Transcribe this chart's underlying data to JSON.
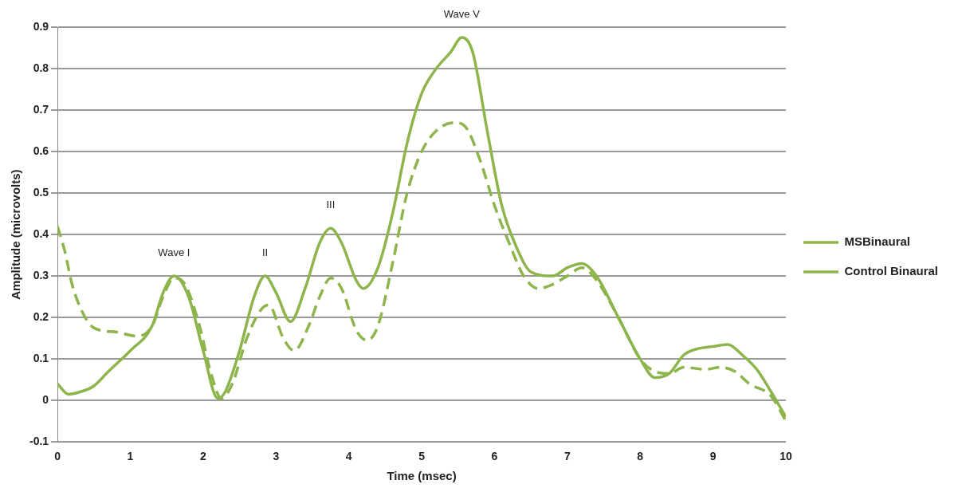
{
  "chart_data": {
    "type": "line",
    "xlabel": "Time (msec)",
    "ylabel": "Amplitude (microvolts)",
    "xlim": [
      0,
      10
    ],
    "xticks": [
      0,
      1,
      2,
      3,
      4,
      5,
      6,
      7,
      8,
      9,
      10
    ],
    "ylim": [
      -0.1,
      0.9
    ],
    "yticks": [
      -0.1,
      0,
      0.1,
      0.2,
      0.3,
      0.4,
      0.5,
      0.6,
      0.7,
      0.8,
      0.9
    ],
    "grid": "y",
    "legend": "right",
    "marker": "none",
    "series": [
      {
        "name": "MSBinaural",
        "color": "#8db54b",
        "line_style": "dashed",
        "x": [
          0,
          0.1,
          0.2,
          0.35,
          0.5,
          0.8,
          1.1,
          1.3,
          1.45,
          1.6,
          1.75,
          1.95,
          2.1,
          2.25,
          2.4,
          2.6,
          2.8,
          2.9,
          3.1,
          3.25,
          3.45,
          3.6,
          3.75,
          3.9,
          4.1,
          4.25,
          4.4,
          4.6,
          4.8,
          5.0,
          5.2,
          5.45,
          5.6,
          5.8,
          6.0,
          6.2,
          6.4,
          6.6,
          6.8,
          7.0,
          7.2,
          7.4,
          7.7,
          8.0,
          8.2,
          8.4,
          8.6,
          8.9,
          9.1,
          9.3,
          9.5,
          9.8,
          10
        ],
        "values": [
          0.42,
          0.36,
          0.28,
          0.21,
          0.175,
          0.165,
          0.155,
          0.18,
          0.25,
          0.295,
          0.28,
          0.18,
          0.07,
          0.005,
          0.04,
          0.15,
          0.22,
          0.23,
          0.15,
          0.12,
          0.18,
          0.25,
          0.295,
          0.27,
          0.17,
          0.145,
          0.18,
          0.33,
          0.5,
          0.6,
          0.65,
          0.67,
          0.66,
          0.58,
          0.47,
          0.38,
          0.3,
          0.27,
          0.28,
          0.3,
          0.32,
          0.29,
          0.2,
          0.1,
          0.07,
          0.065,
          0.08,
          0.075,
          0.08,
          0.07,
          0.04,
          0.01,
          -0.05
        ]
      },
      {
        "name": "Control Binaural",
        "color": "#8db54b",
        "line_style": "solid",
        "x": [
          0,
          0.15,
          0.3,
          0.5,
          0.7,
          1.0,
          1.3,
          1.45,
          1.6,
          1.8,
          2.0,
          2.2,
          2.3,
          2.5,
          2.7,
          2.85,
          3.0,
          3.2,
          3.4,
          3.6,
          3.75,
          3.9,
          4.1,
          4.2,
          4.4,
          4.6,
          4.8,
          5.0,
          5.2,
          5.4,
          5.55,
          5.7,
          5.9,
          6.1,
          6.3,
          6.5,
          6.8,
          7.0,
          7.2,
          7.4,
          7.7,
          8.0,
          8.2,
          8.4,
          8.6,
          8.8,
          9.0,
          9.2,
          9.4,
          9.6,
          9.8,
          10
        ],
        "values": [
          0.04,
          0.015,
          0.02,
          0.035,
          0.07,
          0.12,
          0.18,
          0.26,
          0.3,
          0.25,
          0.12,
          0.005,
          0.02,
          0.12,
          0.25,
          0.3,
          0.26,
          0.19,
          0.27,
          0.38,
          0.415,
          0.38,
          0.29,
          0.27,
          0.32,
          0.45,
          0.62,
          0.74,
          0.8,
          0.84,
          0.875,
          0.84,
          0.65,
          0.47,
          0.37,
          0.31,
          0.3,
          0.32,
          0.33,
          0.3,
          0.2,
          0.1,
          0.055,
          0.065,
          0.11,
          0.125,
          0.13,
          0.135,
          0.11,
          0.075,
          0.02,
          -0.04
        ]
      }
    ],
    "annotations": [
      {
        "text": "Wave I",
        "x": 1.6,
        "y": 0.3
      },
      {
        "text": "II",
        "x": 2.85,
        "y": 0.3
      },
      {
        "text": "III",
        "x": 3.75,
        "y": 0.415
      },
      {
        "text": "Wave V",
        "x": 5.55,
        "y": 0.875
      }
    ]
  }
}
